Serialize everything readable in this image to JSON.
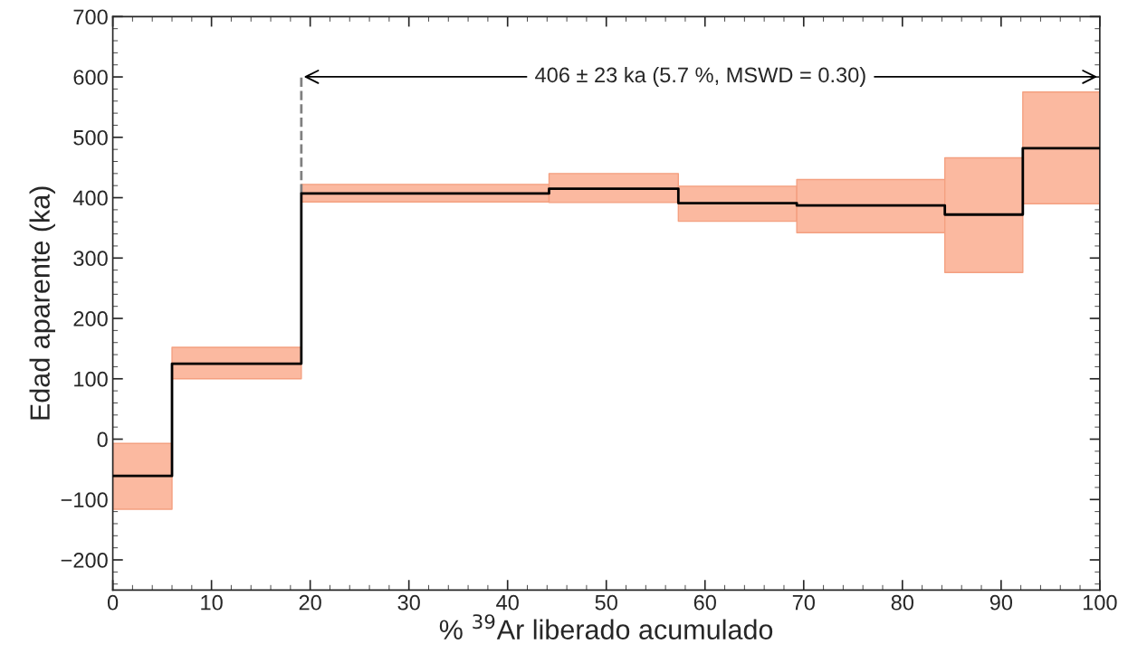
{
  "chart_data": {
    "type": "step",
    "xlabel": "% $^{39}$Ar liberado acumulado",
    "ylabel": "Edad aparente (ka)",
    "series": [
      {
        "color": "#000000",
        "x": [
          0,
          6.0,
          19.1,
          44.2,
          57.3,
          69.3,
          84.3,
          92.2,
          100
        ],
        "values": [
          -61,
          125,
          407,
          415,
          391,
          387,
          372,
          482,
          482
        ],
        "lower": [
          -116,
          100,
          393,
          392,
          361,
          342,
          276,
          390,
          390
        ],
        "upper": [
          -7,
          152,
          422,
          440,
          419,
          430,
          466,
          575,
          575
        ]
      }
    ],
    "ref_lines": [
      {
        "axis": "x",
        "value": 19.1,
        "color": "#808080",
        "line_style": "dashed"
      }
    ],
    "annotations": [
      "406 ± 23 ka (5.7 %, MSWD = 0.30)"
    ],
    "xlim": [
      0,
      100
    ],
    "xticks": [
      0,
      10,
      20,
      30,
      40,
      50,
      60,
      70,
      80,
      90,
      100
    ],
    "ylim": [
      -250,
      700
    ],
    "yticks": [
      -200,
      -100,
      0,
      100,
      200,
      300,
      400,
      500,
      600,
      700
    ],
    "grid": false,
    "legend": false
  }
}
